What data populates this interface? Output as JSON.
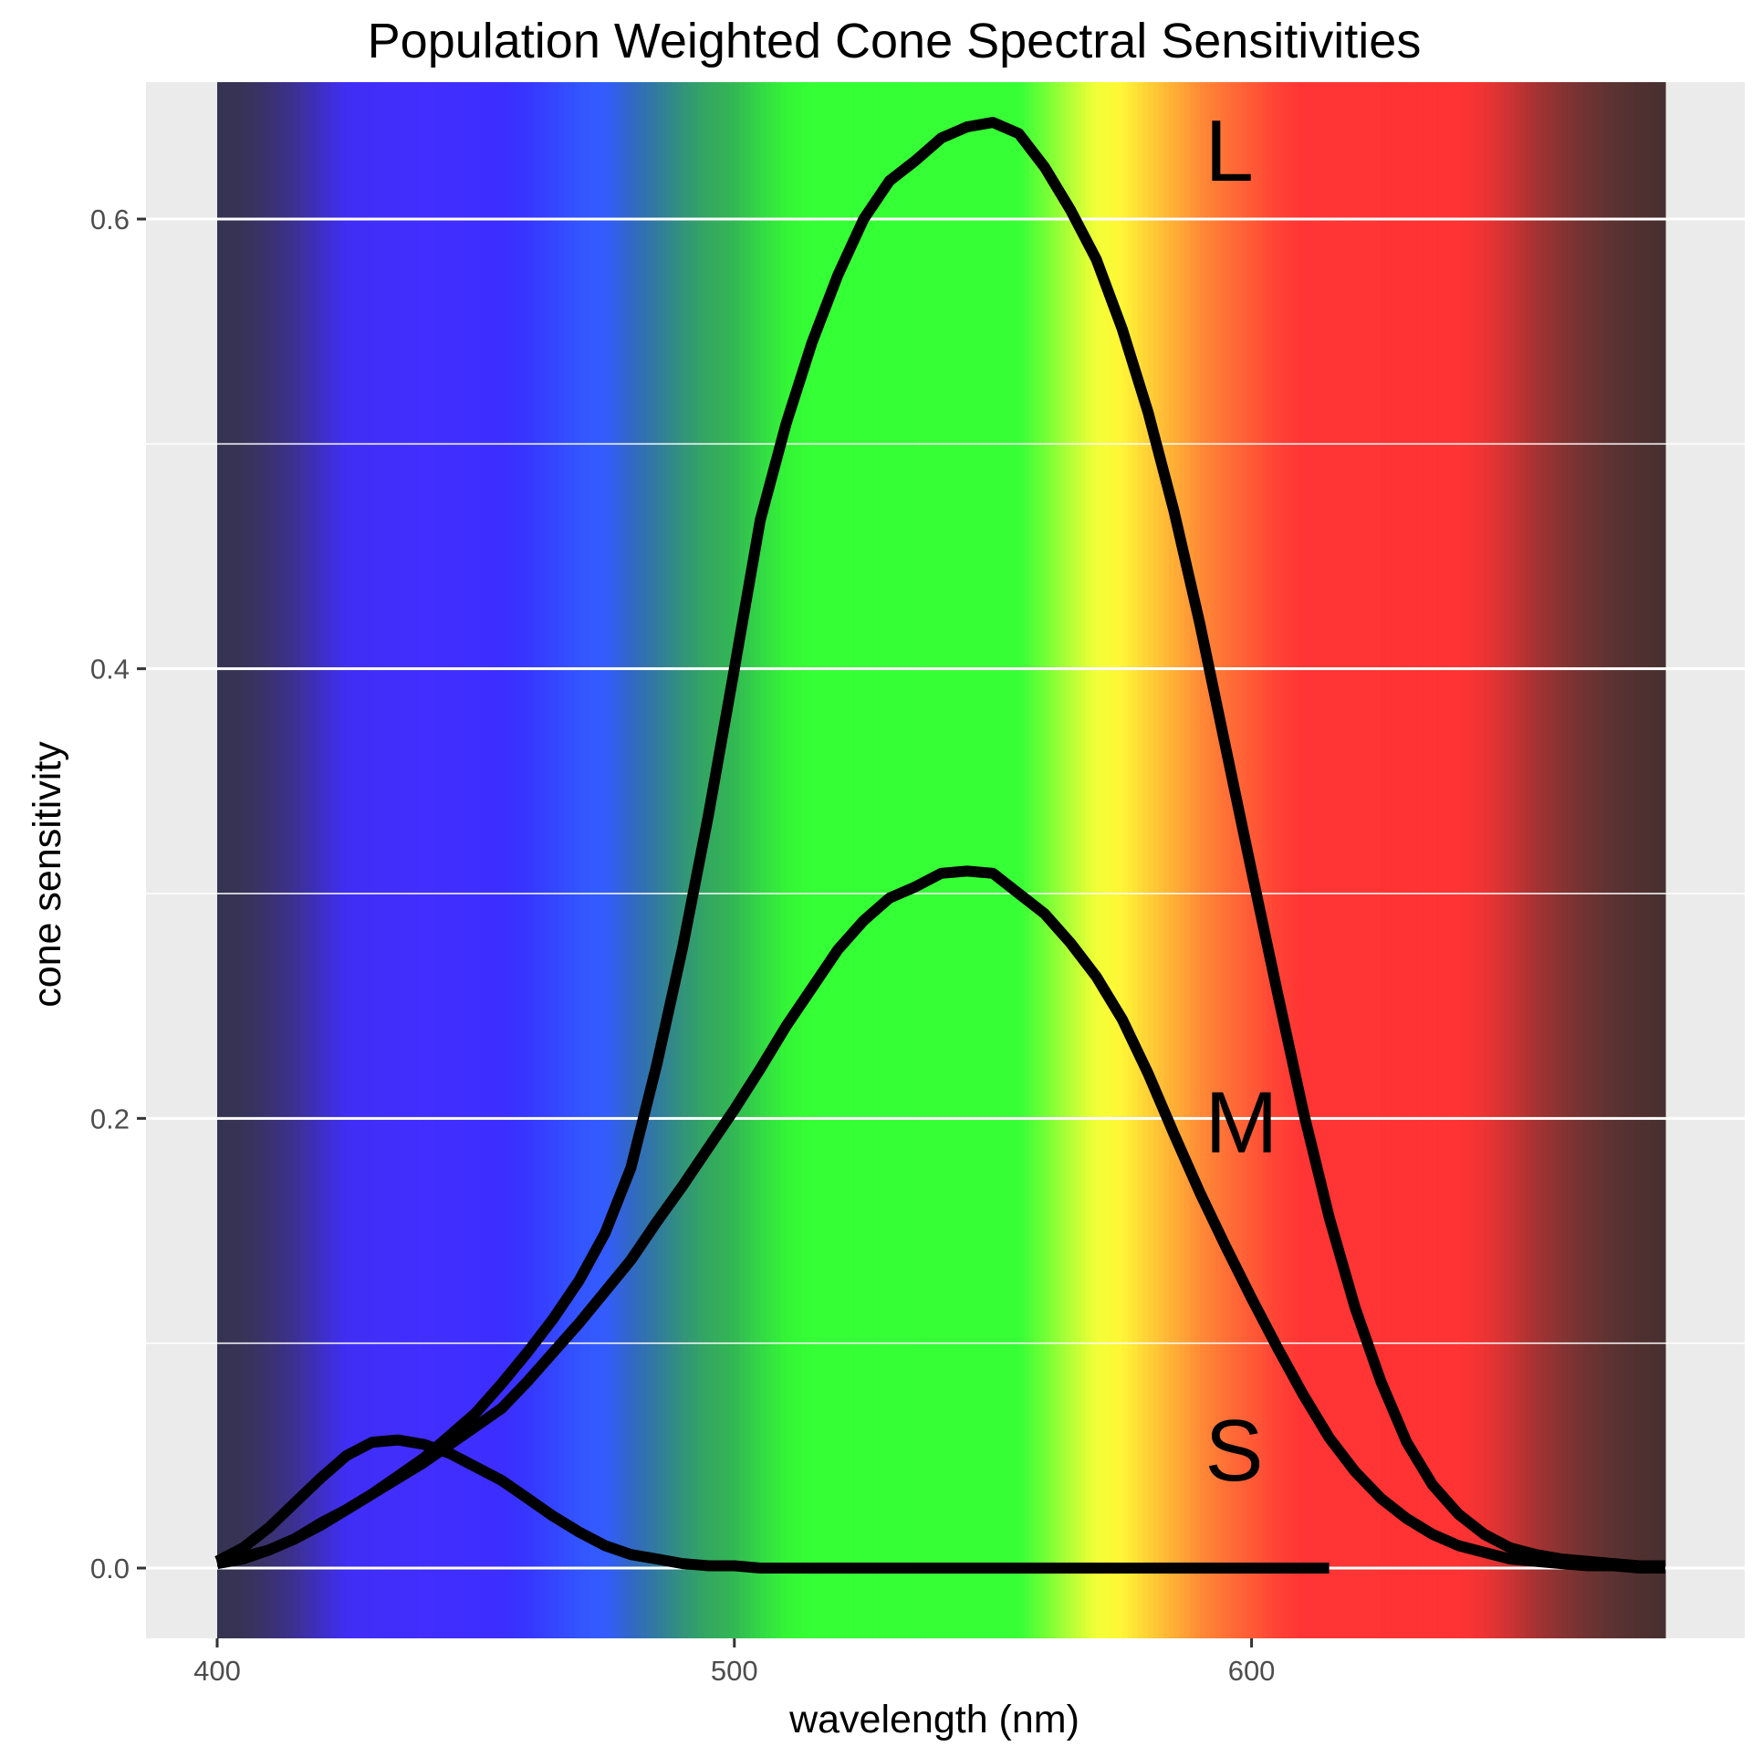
{
  "chart_data": {
    "type": "line",
    "title": "Population Weighted Cone Spectral Sensitivities",
    "xlabel": "wavelength (nm)",
    "ylabel": "cone sensitivity",
    "xlim": [
      386,
      698
    ],
    "ylim": [
      -0.031,
      0.661
    ],
    "xticks": [
      400,
      500,
      600
    ],
    "xtick_labels": [
      "400",
      "500",
      "600"
    ],
    "yticks": [
      0.0,
      0.2,
      0.4,
      0.6
    ],
    "ytick_labels": [
      "0.0",
      "0.2",
      "0.4",
      "0.6"
    ],
    "grid": true,
    "panel_background": "#ebebeb",
    "gridline_color": "#ffffff",
    "line_color": "#000000",
    "spectrum_background": {
      "range": [
        400,
        680
      ],
      "stops": [
        {
          "wl": 400,
          "color": "#363351"
        },
        {
          "wl": 405,
          "color": "#373356"
        },
        {
          "wl": 410,
          "color": "#3a3270"
        },
        {
          "wl": 415,
          "color": "#3c3091"
        },
        {
          "wl": 420,
          "color": "#3e2fc4"
        },
        {
          "wl": 425,
          "color": "#402ef5"
        },
        {
          "wl": 440,
          "color": "#412eff"
        },
        {
          "wl": 455,
          "color": "#3c2eff"
        },
        {
          "wl": 460,
          "color": "#3636ff"
        },
        {
          "wl": 470,
          "color": "#3355ff"
        },
        {
          "wl": 475,
          "color": "#335cff"
        },
        {
          "wl": 480,
          "color": "#3168c4"
        },
        {
          "wl": 485,
          "color": "#317a9f"
        },
        {
          "wl": 490,
          "color": "#32947a"
        },
        {
          "wl": 495,
          "color": "#33a85f"
        },
        {
          "wl": 500,
          "color": "#33b853"
        },
        {
          "wl": 505,
          "color": "#33d846"
        },
        {
          "wl": 510,
          "color": "#33f535"
        },
        {
          "wl": 515,
          "color": "#35ff35"
        },
        {
          "wl": 555,
          "color": "#36ff36"
        },
        {
          "wl": 560,
          "color": "#70ff36"
        },
        {
          "wl": 565,
          "color": "#b5ff36"
        },
        {
          "wl": 570,
          "color": "#f2ff36"
        },
        {
          "wl": 575,
          "color": "#fff536"
        },
        {
          "wl": 580,
          "color": "#ffd036"
        },
        {
          "wl": 585,
          "color": "#ffae36"
        },
        {
          "wl": 590,
          "color": "#ff8b36"
        },
        {
          "wl": 595,
          "color": "#ff7036"
        },
        {
          "wl": 600,
          "color": "#ff5a36"
        },
        {
          "wl": 605,
          "color": "#ff4236"
        },
        {
          "wl": 610,
          "color": "#ff3434"
        },
        {
          "wl": 640,
          "color": "#ff3333"
        },
        {
          "wl": 645,
          "color": "#ee3333"
        },
        {
          "wl": 650,
          "color": "#cc3333"
        },
        {
          "wl": 655,
          "color": "#a63232"
        },
        {
          "wl": 660,
          "color": "#863332"
        },
        {
          "wl": 665,
          "color": "#6e3332"
        },
        {
          "wl": 670,
          "color": "#5c3232"
        },
        {
          "wl": 675,
          "color": "#503030"
        },
        {
          "wl": 680,
          "color": "#483030"
        }
      ]
    },
    "series": [
      {
        "name": "L",
        "x": [
          400,
          405,
          410,
          415,
          420,
          425,
          430,
          435,
          440,
          445,
          450,
          455,
          460,
          465,
          470,
          475,
          480,
          485,
          490,
          495,
          500,
          505,
          510,
          515,
          520,
          525,
          530,
          535,
          540,
          545,
          550,
          555,
          560,
          565,
          570,
          575,
          580,
          585,
          590,
          595,
          600,
          605,
          610,
          615,
          620,
          625,
          630,
          635,
          640,
          645,
          650,
          655,
          660,
          665,
          670,
          675,
          680
        ],
        "values": [
          0.002,
          0.004,
          0.008,
          0.013,
          0.019,
          0.026,
          0.033,
          0.041,
          0.049,
          0.059,
          0.069,
          0.082,
          0.096,
          0.111,
          0.128,
          0.149,
          0.178,
          0.224,
          0.276,
          0.335,
          0.4,
          0.466,
          0.509,
          0.545,
          0.575,
          0.6,
          0.617,
          0.626,
          0.636,
          0.641,
          0.643,
          0.638,
          0.623,
          0.604,
          0.582,
          0.551,
          0.514,
          0.47,
          0.42,
          0.365,
          0.31,
          0.256,
          0.203,
          0.156,
          0.116,
          0.083,
          0.056,
          0.037,
          0.024,
          0.015,
          0.009,
          0.006,
          0.004,
          0.003,
          0.002,
          0.001,
          0.001
        ],
        "label_position": [
          591,
          0.617
        ]
      },
      {
        "name": "M",
        "x": [
          400,
          405,
          410,
          415,
          420,
          425,
          430,
          435,
          440,
          445,
          450,
          455,
          460,
          465,
          470,
          475,
          480,
          485,
          490,
          495,
          500,
          505,
          510,
          515,
          520,
          525,
          530,
          535,
          540,
          545,
          550,
          555,
          560,
          565,
          570,
          575,
          580,
          585,
          590,
          595,
          600,
          605,
          610,
          615,
          620,
          625,
          630,
          635,
          640,
          645,
          650,
          655,
          660,
          665,
          670,
          675,
          680
        ],
        "values": [
          0.002,
          0.005,
          0.008,
          0.013,
          0.02,
          0.026,
          0.033,
          0.04,
          0.047,
          0.055,
          0.063,
          0.071,
          0.083,
          0.096,
          0.109,
          0.123,
          0.137,
          0.154,
          0.17,
          0.187,
          0.204,
          0.222,
          0.241,
          0.258,
          0.275,
          0.288,
          0.298,
          0.303,
          0.309,
          0.31,
          0.309,
          0.3,
          0.291,
          0.278,
          0.263,
          0.244,
          0.22,
          0.193,
          0.167,
          0.143,
          0.12,
          0.098,
          0.077,
          0.058,
          0.043,
          0.031,
          0.022,
          0.015,
          0.01,
          0.007,
          0.004,
          0.003,
          0.002,
          0.001,
          0.001,
          0.0,
          0.0
        ],
        "label_position": [
          591,
          0.185
        ]
      },
      {
        "name": "S",
        "x": [
          400,
          405,
          410,
          415,
          420,
          425,
          430,
          435,
          440,
          445,
          450,
          455,
          460,
          465,
          470,
          475,
          480,
          485,
          490,
          495,
          500,
          505,
          510,
          515,
          520,
          525,
          530,
          535,
          540,
          545,
          550,
          555,
          560,
          565,
          570,
          575,
          580,
          585,
          590,
          595,
          600,
          605,
          610,
          615
        ],
        "values": [
          0.003,
          0.009,
          0.018,
          0.029,
          0.04,
          0.05,
          0.056,
          0.057,
          0.055,
          0.051,
          0.045,
          0.039,
          0.031,
          0.023,
          0.016,
          0.01,
          0.006,
          0.004,
          0.002,
          0.001,
          0.001,
          0.0,
          0.0,
          0.0,
          0.0,
          0.0,
          0.0,
          0.0,
          0.0,
          0.0,
          0.0,
          0.0,
          0.0,
          0.0,
          0.0,
          0.0,
          0.0,
          0.0,
          0.0,
          0.0,
          0.0,
          0.0,
          0.0,
          0.0
        ],
        "label_position": [
          591,
          0.039
        ]
      }
    ]
  }
}
